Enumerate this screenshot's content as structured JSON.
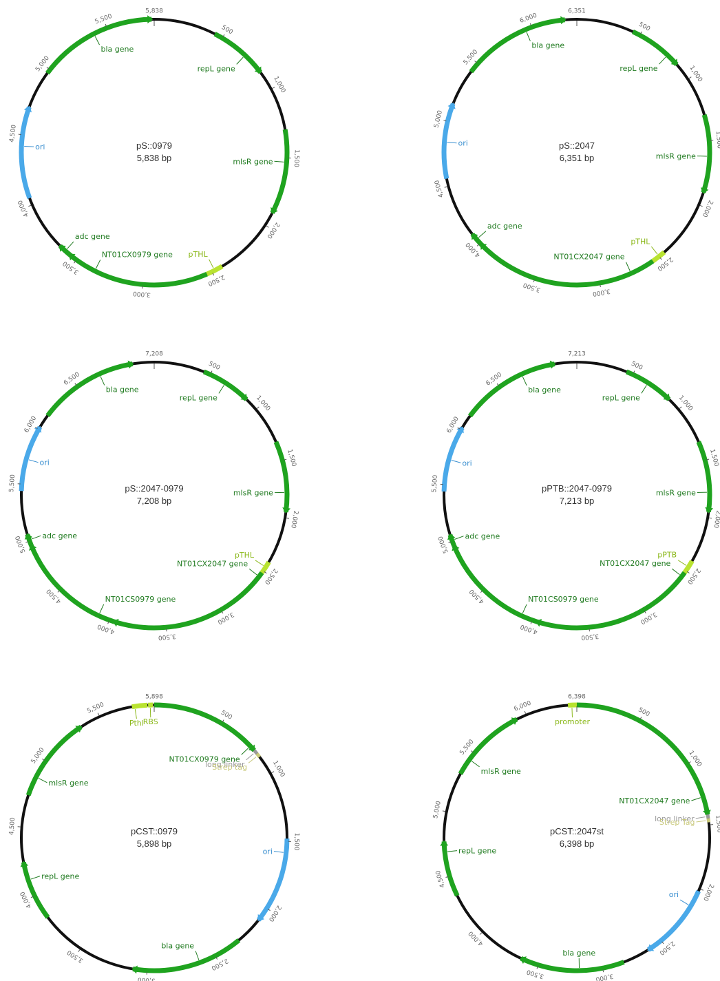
{
  "colors": {
    "backbone": "#111111",
    "gene": "#1fa31f",
    "ori": "#4aa9e9",
    "promoter": "#b9e331",
    "promoter_label": "#8bb81a",
    "linker": "#999999",
    "tag": "#c8c87a",
    "gene_label": "#1f7a1f",
    "ori_label": "#3a8fd0",
    "tick_label": "#666666",
    "name_label": "#333333"
  },
  "plasmids": [
    {
      "name": "pS::0979",
      "size_label": "5,838 bp",
      "length": 5838,
      "top_label": "5,838",
      "ticks": [
        {
          "pos": 500,
          "label": "500"
        },
        {
          "pos": 1000,
          "label": "1,000"
        },
        {
          "pos": 1500,
          "label": "1,500"
        },
        {
          "pos": 2000,
          "label": "2,000"
        },
        {
          "pos": 2500,
          "label": "2,500"
        },
        {
          "pos": 3000,
          "label": "3,000"
        },
        {
          "pos": 3500,
          "label": "3,500"
        },
        {
          "pos": 4000,
          "label": "4,000"
        },
        {
          "pos": 4500,
          "label": "4,500"
        },
        {
          "pos": 5000,
          "label": "5,000"
        },
        {
          "pos": 5500,
          "label": "5,500"
        }
      ],
      "features": [
        {
          "label": "bla gene",
          "kind": "gene",
          "start": 4970,
          "end": 5820,
          "mark": 5400
        },
        {
          "label": "repL gene",
          "kind": "gene",
          "start": 440,
          "end": 860,
          "mark": 700
        },
        {
          "label": "mlsR gene",
          "kind": "gene",
          "start": 1300,
          "end": 1900,
          "mark": 1530
        },
        {
          "label": "pTHL",
          "kind": "promoter",
          "start": 2420,
          "end": 2540,
          "mark": 2480
        },
        {
          "label": "NT01CX0979 gene",
          "kind": "gene",
          "start": 2540,
          "end": 3560,
          "mark": 3350
        },
        {
          "label": "adc gene",
          "kind": "gene",
          "start": 3560,
          "end": 3650,
          "mark": 3600
        },
        {
          "label": "ori",
          "kind": "ori",
          "start": 4050,
          "end": 4700,
          "mark": 4420
        }
      ]
    },
    {
      "name": "pS::2047",
      "size_label": "6,351 bp",
      "length": 6351,
      "top_label": "6,351",
      "ticks": [
        {
          "pos": 500,
          "label": "500"
        },
        {
          "pos": 1000,
          "label": "1,000"
        },
        {
          "pos": 1500,
          "label": "1,500"
        },
        {
          "pos": 2000,
          "label": "2,000"
        },
        {
          "pos": 2500,
          "label": "2,500"
        },
        {
          "pos": 3000,
          "label": "3,000"
        },
        {
          "pos": 3500,
          "label": "3,500"
        },
        {
          "pos": 4000,
          "label": "4,000"
        },
        {
          "pos": 4500,
          "label": "4,500"
        },
        {
          "pos": 5000,
          "label": "5,000"
        },
        {
          "pos": 5500,
          "label": "5,500"
        },
        {
          "pos": 6000,
          "label": "6,000"
        }
      ],
      "features": [
        {
          "label": "bla gene",
          "kind": "gene",
          "start": 5420,
          "end": 6260,
          "mark": 5950
        },
        {
          "label": "repL gene",
          "kind": "gene",
          "start": 440,
          "end": 860,
          "mark": 760
        },
        {
          "label": "mlsR gene",
          "kind": "gene",
          "start": 1300,
          "end": 1900,
          "mark": 1620
        },
        {
          "label": "pTHL",
          "kind": "promoter",
          "start": 2450,
          "end": 2560,
          "mark": 2500
        },
        {
          "label": "NT01CX2047 gene",
          "kind": "gene",
          "start": 2560,
          "end": 3990,
          "mark": 2750
        },
        {
          "label": "adc gene",
          "kind": "gene",
          "start": 3990,
          "end": 4090,
          "mark": 4040
        },
        {
          "label": "ori",
          "kind": "ori",
          "start": 4560,
          "end": 5140,
          "mark": 4840
        }
      ]
    },
    {
      "name": "pS::2047-0979",
      "size_label": "7,208 bp",
      "length": 7208,
      "top_label": "7,208",
      "ticks": [
        {
          "pos": 500,
          "label": "500"
        },
        {
          "pos": 1000,
          "label": "1,000"
        },
        {
          "pos": 1500,
          "label": "1,500"
        },
        {
          "pos": 2000,
          "label": "2,000"
        },
        {
          "pos": 2500,
          "label": "2,500"
        },
        {
          "pos": 3000,
          "label": "3,000"
        },
        {
          "pos": 3500,
          "label": "3,500"
        },
        {
          "pos": 4000,
          "label": "4,000"
        },
        {
          "pos": 4500,
          "label": "4,500"
        },
        {
          "pos": 5000,
          "label": "5,000"
        },
        {
          "pos": 5500,
          "label": "5,500"
        },
        {
          "pos": 6000,
          "label": "6,000"
        },
        {
          "pos": 6500,
          "label": "6,500"
        }
      ],
      "features": [
        {
          "label": "bla gene",
          "kind": "gene",
          "start": 6140,
          "end": 7020,
          "mark": 6720
        },
        {
          "label": "repL gene",
          "kind": "gene",
          "start": 440,
          "end": 880,
          "mark": 650
        },
        {
          "label": "mlsR gene",
          "kind": "gene",
          "start": 1330,
          "end": 1950,
          "mark": 1780
        },
        {
          "label": "pTHL",
          "kind": "promoter",
          "start": 2410,
          "end": 2520,
          "mark": 2460
        },
        {
          "label": "NT01CX2047 gene",
          "kind": "gene",
          "start": 2520,
          "end": 3960,
          "mark": 2560
        },
        {
          "label": "NT01CS0979 gene",
          "kind": "gene",
          "start": 3960,
          "end": 4960,
          "mark": 4100
        },
        {
          "label": "adc gene",
          "kind": "gene",
          "start": 4960,
          "end": 5060,
          "mark": 5010
        },
        {
          "label": "ori",
          "kind": "ori",
          "start": 5440,
          "end": 6020,
          "mark": 5720
        }
      ]
    },
    {
      "name": "pPTB::2047-0979",
      "size_label": "7,213 bp",
      "length": 7213,
      "top_label": "7,213",
      "ticks": [
        {
          "pos": 500,
          "label": "500"
        },
        {
          "pos": 1000,
          "label": "1,000"
        },
        {
          "pos": 1500,
          "label": "1,500"
        },
        {
          "pos": 2000,
          "label": "2,000"
        },
        {
          "pos": 2500,
          "label": "2,500"
        },
        {
          "pos": 3000,
          "label": "3,000"
        },
        {
          "pos": 3500,
          "label": "3,500"
        },
        {
          "pos": 4000,
          "label": "4,000"
        },
        {
          "pos": 4500,
          "label": "4,500"
        },
        {
          "pos": 5000,
          "label": "5,000"
        },
        {
          "pos": 5500,
          "label": "5,500"
        },
        {
          "pos": 6000,
          "label": "6,000"
        },
        {
          "pos": 6500,
          "label": "6,500"
        }
      ],
      "features": [
        {
          "label": "bla gene",
          "kind": "gene",
          "start": 6140,
          "end": 7020,
          "mark": 6720
        },
        {
          "label": "repL gene",
          "kind": "gene",
          "start": 440,
          "end": 880,
          "mark": 650
        },
        {
          "label": "mlsR gene",
          "kind": "gene",
          "start": 1330,
          "end": 1950,
          "mark": 1780
        },
        {
          "label": "pPTB",
          "kind": "promoter",
          "start": 2400,
          "end": 2520,
          "mark": 2460
        },
        {
          "label": "NT01CX2047 gene",
          "kind": "gene",
          "start": 2520,
          "end": 3960,
          "mark": 2560
        },
        {
          "label": "NT01CS0979 gene",
          "kind": "gene",
          "start": 3960,
          "end": 4960,
          "mark": 4100
        },
        {
          "label": "adc gene",
          "kind": "gene",
          "start": 4960,
          "end": 5060,
          "mark": 5010
        },
        {
          "label": "ori",
          "kind": "ori",
          "start": 5440,
          "end": 6020,
          "mark": 5720
        }
      ]
    },
    {
      "name": "pCST::0979",
      "size_label": "5,898 bp",
      "length": 5898,
      "top_label": "5,898",
      "ticks": [
        {
          "pos": 500,
          "label": "500"
        },
        {
          "pos": 1000,
          "label": "1,000"
        },
        {
          "pos": 1500,
          "label": "1,500"
        },
        {
          "pos": 2000,
          "label": "2,000"
        },
        {
          "pos": 2500,
          "label": "2,500"
        },
        {
          "pos": 3000,
          "label": "3,000"
        },
        {
          "pos": 3500,
          "label": "3,500"
        },
        {
          "pos": 4000,
          "label": "4,000"
        },
        {
          "pos": 4500,
          "label": "4,500"
        },
        {
          "pos": 5000,
          "label": "5,000"
        },
        {
          "pos": 5500,
          "label": "5,500"
        }
      ],
      "features": [
        {
          "label": "Pthl",
          "kind": "promoter",
          "start": 5740,
          "end": 5850,
          "mark": 5760
        },
        {
          "label": "RBS",
          "kind": "promoter",
          "start": 5855,
          "end": 5890,
          "mark": 5870
        },
        {
          "label": "NT01CX0979 gene",
          "kind": "gene",
          "start": 0,
          "end": 800,
          "mark": 760
        },
        {
          "label": "long linker",
          "kind": "linker",
          "start": 800,
          "end": 830,
          "mark": 815
        },
        {
          "label": "Strep tag",
          "kind": "tag",
          "start": 830,
          "end": 860,
          "mark": 845
        },
        {
          "label": "ori",
          "kind": "ori",
          "start": 1480,
          "end": 2100,
          "mark": 1580
        },
        {
          "label": "bla gene",
          "kind": "gene",
          "start": 2300,
          "end": 3100,
          "mark": 2620
        },
        {
          "label": "repL gene",
          "kind": "gene",
          "start": 3820,
          "end": 4250,
          "mark": 4120
        },
        {
          "label": "mlsR gene",
          "kind": "gene",
          "start": 4730,
          "end": 5350,
          "mark": 4870
        }
      ]
    },
    {
      "name": "pCST::2047st",
      "size_label": "6,398 bp",
      "length": 6398,
      "top_label": "6,398",
      "ticks": [
        {
          "pos": 500,
          "label": "500"
        },
        {
          "pos": 1000,
          "label": "1,000"
        },
        {
          "pos": 1500,
          "label": "1,500"
        },
        {
          "pos": 2000,
          "label": "2,000"
        },
        {
          "pos": 2500,
          "label": "2,500"
        },
        {
          "pos": 3000,
          "label": "3,000"
        },
        {
          "pos": 3500,
          "label": "3,500"
        },
        {
          "pos": 4000,
          "label": "4,000"
        },
        {
          "pos": 4500,
          "label": "4,500"
        },
        {
          "pos": 5000,
          "label": "5,000"
        },
        {
          "pos": 5500,
          "label": "5,500"
        },
        {
          "pos": 6000,
          "label": "6,000"
        }
      ],
      "features": [
        {
          "label": "promoter",
          "kind": "promoter",
          "start": 6330,
          "end": 6398,
          "mark": 6360
        },
        {
          "label": "NT01CX2047 gene",
          "kind": "gene",
          "start": 0,
          "end": 1420,
          "mark": 1280
        },
        {
          "label": "long linker",
          "kind": "linker",
          "start": 1420,
          "end": 1450,
          "mark": 1435
        },
        {
          "label": "Strep Tag",
          "kind": "tag",
          "start": 1450,
          "end": 1480,
          "mark": 1465
        },
        {
          "label": "ori",
          "kind": "ori",
          "start": 2020,
          "end": 2620,
          "mark": 2150
        },
        {
          "label": "bla gene",
          "kind": "gene",
          "start": 2830,
          "end": 3640,
          "mark": 3180
        },
        {
          "label": "repL gene",
          "kind": "gene",
          "start": 4340,
          "end": 4770,
          "mark": 4690
        },
        {
          "label": "mlsR gene",
          "kind": "gene",
          "start": 5310,
          "end": 5920,
          "mark": 5440
        }
      ]
    }
  ]
}
